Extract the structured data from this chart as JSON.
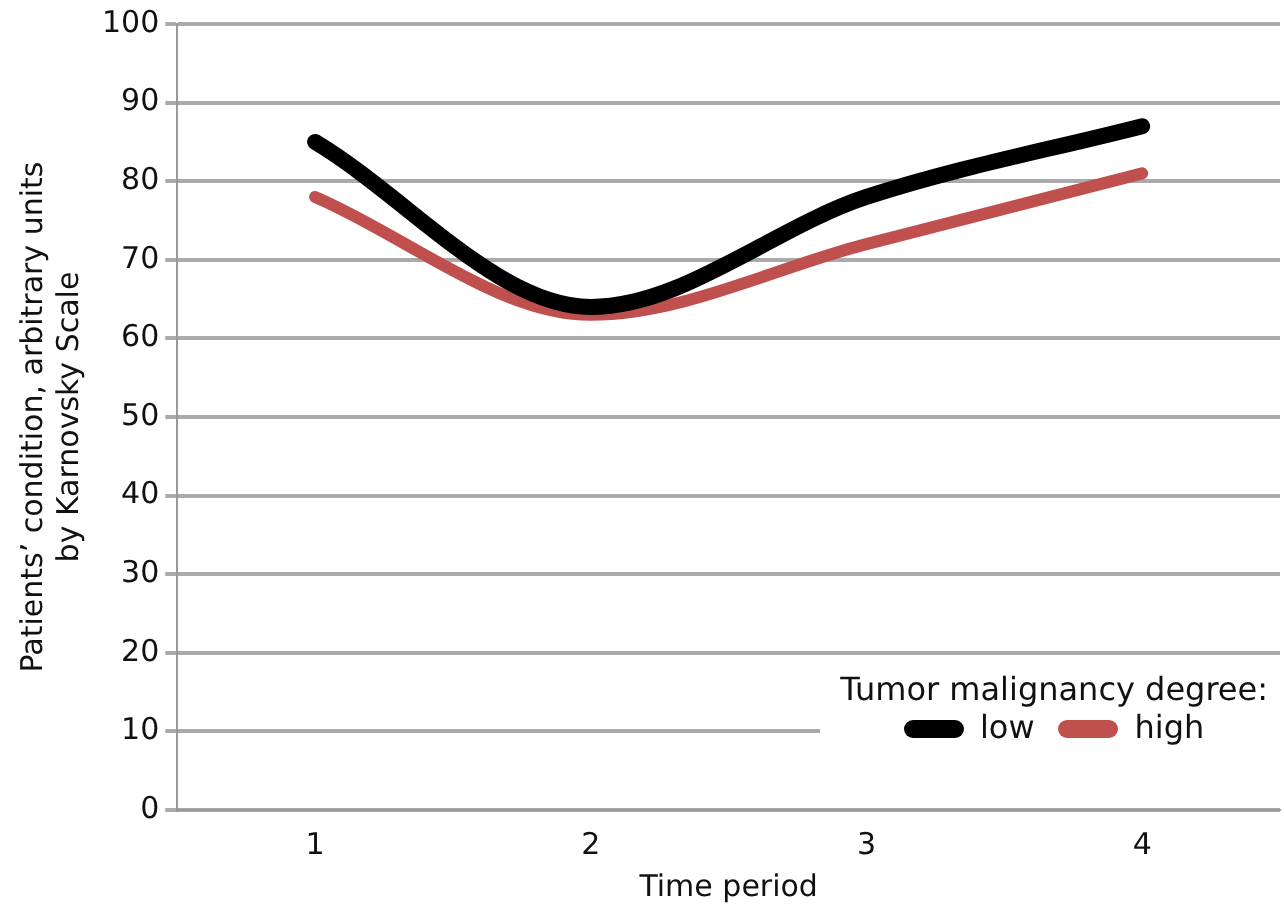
{
  "chart_data": {
    "type": "line",
    "xlabel": "Time period",
    "ylabel": "Patients’ condition, arbitrary units\nby Karnovsky Scale",
    "legend_title": "Tumor malignancy degree:",
    "categories": [
      "1",
      "2",
      "3",
      "4"
    ],
    "series": [
      {
        "name": "low",
        "color": "#000000",
        "values": [
          85,
          64,
          78,
          87
        ]
      },
      {
        "name": "high",
        "color": "#c0504d",
        "values": [
          78,
          63,
          72,
          81
        ]
      }
    ],
    "ylim": [
      0,
      100
    ],
    "yticks": [
      0,
      10,
      20,
      30,
      40,
      50,
      60,
      70,
      80,
      90,
      100
    ],
    "grid": "y",
    "legend": "bottom right",
    "marker": "none",
    "line_style": "solid"
  }
}
